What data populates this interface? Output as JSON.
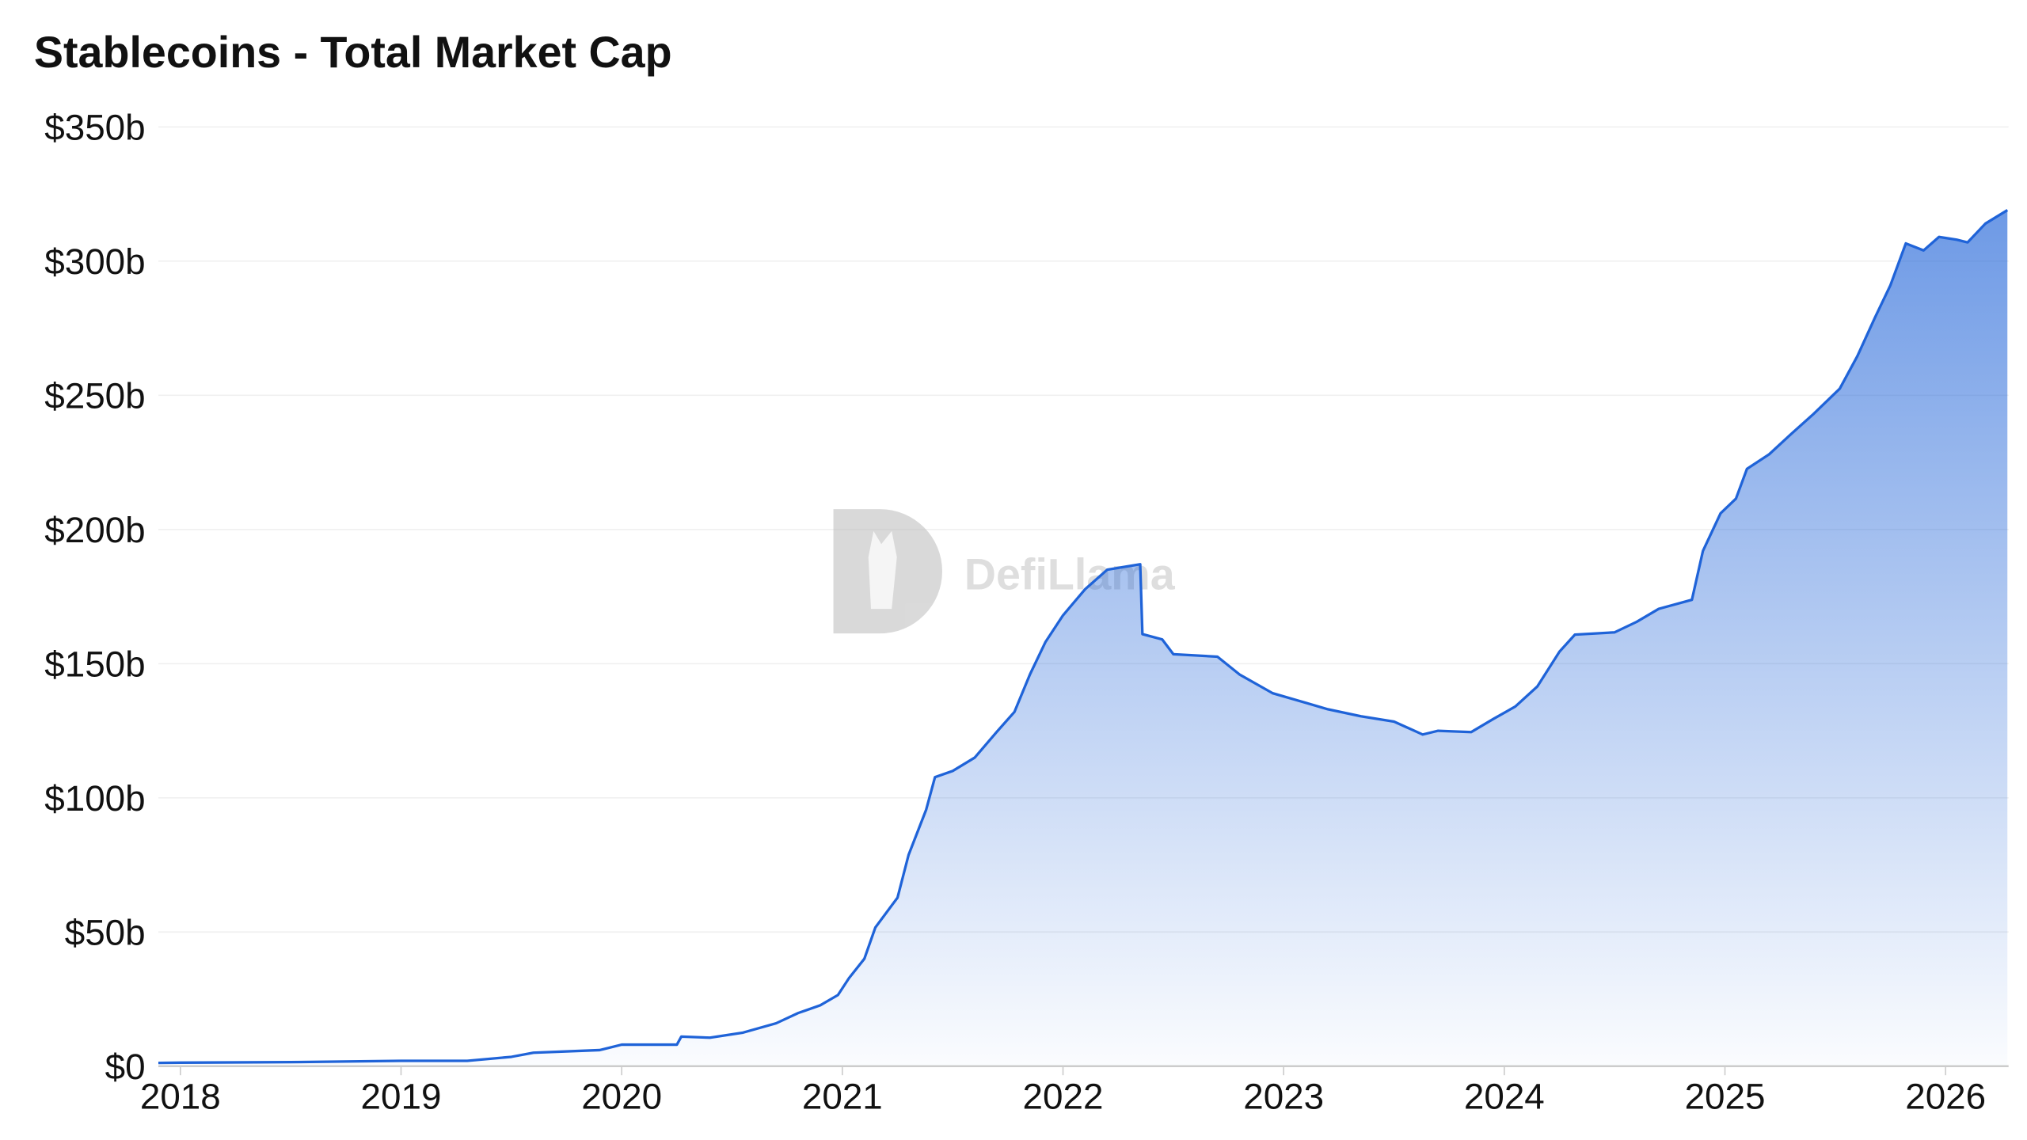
{
  "chart_data": {
    "type": "area",
    "title": "Stablecoins - Total Market Cap",
    "xlabel": "",
    "ylabel": "",
    "xlim": [
      2017.9,
      2026.28
    ],
    "ylim": [
      0,
      350
    ],
    "y_unit": "billion USD",
    "grid": true,
    "x_ticks": [
      "2018",
      "2019",
      "2020",
      "2021",
      "2022",
      "2023",
      "2024",
      "2025",
      "2026"
    ],
    "y_ticks": [
      "$0",
      "$50b",
      "$100b",
      "$150b",
      "$200b",
      "$250b",
      "$300b",
      "$350b"
    ],
    "y_tick_values": [
      0,
      50,
      100,
      150,
      200,
      250,
      300,
      350
    ],
    "series": [
      {
        "color": "#1f63d8",
        "x": [
          2017.9,
          2018.0,
          2018.5,
          2019.0,
          2019.3,
          2019.5,
          2019.6,
          2019.9,
          2020.0,
          2020.25,
          2020.27,
          2020.4,
          2020.55,
          2020.7,
          2020.8,
          2020.9,
          2020.98,
          2021.03,
          2021.1,
          2021.15,
          2021.25,
          2021.3,
          2021.38,
          2021.42,
          2021.5,
          2021.6,
          2021.7,
          2021.78,
          2021.85,
          2021.92,
          2022.0,
          2022.1,
          2022.2,
          2022.35,
          2022.36,
          2022.45,
          2022.5,
          2022.7,
          2022.8,
          2022.95,
          2023.05,
          2023.2,
          2023.35,
          2023.5,
          2023.63,
          2023.7,
          2023.85,
          2023.95,
          2024.05,
          2024.15,
          2024.25,
          2024.32,
          2024.5,
          2024.6,
          2024.7,
          2024.85,
          2024.9,
          2024.98,
          2025.05,
          2025.1,
          2025.2,
          2025.3,
          2025.4,
          2025.52,
          2025.6,
          2025.68,
          2025.75,
          2025.82,
          2025.9,
          2025.97,
          2026.05,
          2026.1,
          2026.18,
          2026.28
        ],
        "values": [
          1.2,
          1.3,
          1.5,
          2,
          2,
          3.5,
          5,
          6,
          8,
          8,
          11,
          10.6,
          12.5,
          16,
          19.8,
          22.7,
          26.5,
          32.8,
          40,
          51.7,
          62.8,
          78.7,
          95.6,
          107.7,
          110,
          115,
          124.6,
          132,
          146,
          158,
          168,
          177.7,
          185,
          187,
          161,
          159,
          153.5,
          152.6,
          146,
          139,
          136.6,
          133,
          130.4,
          128.4,
          123.6,
          125,
          124.5,
          129.4,
          134,
          141.5,
          154.5,
          160.8,
          161.7,
          165.6,
          170.4,
          173.8,
          192,
          206,
          211.5,
          222.6,
          228,
          235.6,
          242.9,
          252.5,
          264.6,
          279,
          291,
          306.6,
          304,
          309,
          308,
          307,
          314,
          319
        ]
      }
    ]
  },
  "watermark": "DefiLlama"
}
